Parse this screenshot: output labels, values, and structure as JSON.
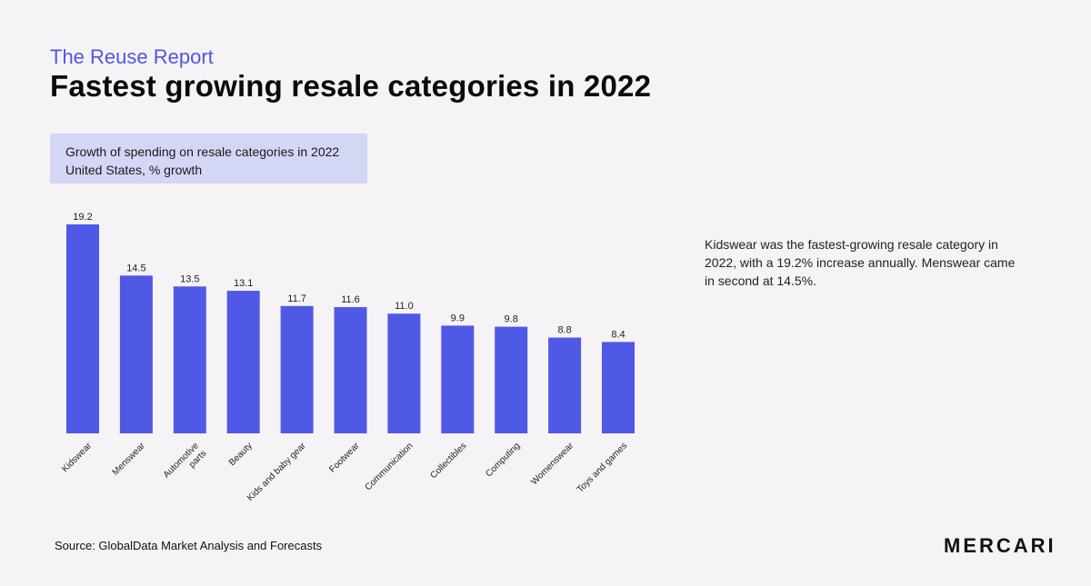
{
  "header": {
    "eyebrow": "The Reuse Report",
    "title": "Fastest growing resale categories in 2022"
  },
  "chart_data": {
    "type": "bar",
    "title": "Growth of spending on resale categories in 2022",
    "subtitle": "United States, % growth",
    "categories": [
      "Kidswear",
      "Menswear",
      "Automotive parts",
      "Beauty",
      "Kids and baby gear",
      "Footwear",
      "Communication",
      "Collectibles",
      "Computing",
      "Womenswear",
      "Toys and games"
    ],
    "category_lines": [
      [
        "Kidswear"
      ],
      [
        "Menswear"
      ],
      [
        "Automotive",
        "parts"
      ],
      [
        "Beauty"
      ],
      [
        "Kids and baby gear"
      ],
      [
        "Footwear"
      ],
      [
        "Communication"
      ],
      [
        "Collectibles"
      ],
      [
        "Computing"
      ],
      [
        "Womenswear"
      ],
      [
        "Toys and games"
      ]
    ],
    "values": [
      19.2,
      14.5,
      13.5,
      13.1,
      11.7,
      11.6,
      11.0,
      9.9,
      9.8,
      8.8,
      8.4
    ],
    "value_labels": [
      "19.2",
      "14.5",
      "13.5",
      "13.1",
      "11.7",
      "11.6",
      "11.0",
      "9.9",
      "9.8",
      "8.8",
      "8.4"
    ],
    "ylim": [
      0,
      19.2
    ],
    "grid": false,
    "bar_color": "#5059e6"
  },
  "insight": {
    "text": "Kidswear was the fastest-growing resale category in 2022, with a 19.2% increase annually. Menswear came in second at 14.5%."
  },
  "footer": {
    "source": "Source: GlobalData Market Analysis and Forecasts",
    "logo": "MERCARI"
  }
}
